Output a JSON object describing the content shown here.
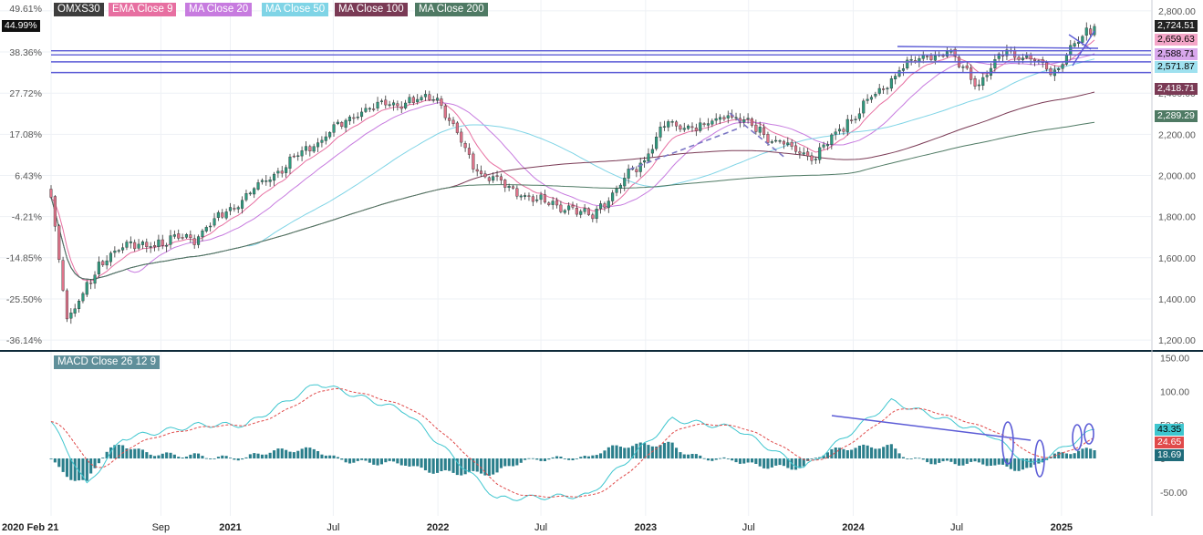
{
  "legend": [
    {
      "label": "OMXS30",
      "color": "#3d3d3d"
    },
    {
      "label": "EMA Close 9",
      "color": "#e76fa1"
    },
    {
      "label": "MA Close 20",
      "color": "#c77bdf"
    },
    {
      "label": "MA Close 50",
      "color": "#7fd4e6"
    },
    {
      "label": "MA Close 100",
      "color": "#7a3a55"
    },
    {
      "label": "MA Close 200",
      "color": "#4f7a64"
    }
  ],
  "macd_label": "MACD Close 26 12 9",
  "chart_data": [
    {
      "type": "candlestick",
      "instrument": "OMXS30",
      "interval": "weekly",
      "x_tick_labels": [
        "2020 Feb 21",
        "Sep",
        "2021",
        "Jul",
        "2022",
        "Jul",
        "2023",
        "Jul",
        "2024",
        "Jul",
        "2025"
      ],
      "left_axis_ticks": [
        "49.61%",
        "38.36%",
        "27.72%",
        "17.08%",
        "6.43%",
        "-4.21%",
        "-14.85%",
        "-25.50%",
        "-36.14%"
      ],
      "left_axis_highlight": "44.99%",
      "right_axis_ticks": [
        "2,800.00",
        "2,600.00",
        "2,400.00",
        "2,200.00",
        "2,000.00",
        "1,800.00",
        "1,600.00",
        "1,400.00",
        "1,200.00"
      ],
      "right_axis_ticks_values": [
        2800,
        2600,
        2400,
        2200,
        2000,
        1800,
        1600,
        1400,
        1200
      ],
      "ylim": [
        1165,
        2835
      ],
      "price_anchors": [
        {
          "date": "2020-02-21",
          "close": 1880
        },
        {
          "date": "2020-03-20",
          "close": 1300
        },
        {
          "date": "2020-06-05",
          "close": 1640
        },
        {
          "date": "2020-10-30",
          "close": 1700
        },
        {
          "date": "2021-04-30",
          "close": 2100
        },
        {
          "date": "2021-08-27",
          "close": 2330
        },
        {
          "date": "2021-12-31",
          "close": 2380
        },
        {
          "date": "2022-03-11",
          "close": 2020
        },
        {
          "date": "2022-06-17",
          "close": 1880
        },
        {
          "date": "2022-09-30",
          "close": 1810
        },
        {
          "date": "2022-12-30",
          "close": 2080
        },
        {
          "date": "2023-02-03",
          "close": 2250
        },
        {
          "date": "2023-04-07",
          "close": 2230
        },
        {
          "date": "2023-05-26",
          "close": 2300
        },
        {
          "date": "2023-09-29",
          "close": 2110
        },
        {
          "date": "2023-10-27",
          "close": 2100
        },
        {
          "date": "2024-01-26",
          "close": 2360
        },
        {
          "date": "2024-04-05",
          "close": 2550
        },
        {
          "date": "2024-06-14",
          "close": 2600
        },
        {
          "date": "2024-08-09",
          "close": 2450
        },
        {
          "date": "2024-09-27",
          "close": 2610
        },
        {
          "date": "2024-12-20",
          "close": 2500
        },
        {
          "date": "2025-02-14",
          "close": 2700
        },
        {
          "date": "2025-02-28",
          "close": 2724.51
        }
      ],
      "price_labels": [
        {
          "text": "2,724.51",
          "value": 2724.51,
          "bg": "#222222",
          "fg": "#ffffff"
        },
        {
          "text": "2,659.63",
          "value": 2659.63,
          "bg": "#f4a6c8",
          "fg": "#000000"
        },
        {
          "text": "2,588.71",
          "value": 2588.71,
          "bg": "#d8a7ec",
          "fg": "#000000"
        },
        {
          "text": "2,571.87",
          "value": 2571.87,
          "bg": "#9fe1ef",
          "fg": "#000000"
        },
        {
          "text": "2,418.71",
          "value": 2418.71,
          "bg": "#7a3a55",
          "fg": "#ffffff"
        },
        {
          "text": "2,289.29",
          "value": 2289.29,
          "bg": "#4f7a64",
          "fg": "#ffffff"
        }
      ],
      "horizontal_levels": [
        2606,
        2586,
        2552
      ],
      "up_color": "#2f9a7f",
      "down_color": "#e0738a"
    },
    {
      "type": "macd",
      "title": "MACD Close 26 12 9",
      "y_tick_labels": [
        "150.00",
        "100.00",
        "50.00",
        "0",
        "-50.00"
      ],
      "y_tick_values": [
        150,
        100,
        50,
        0,
        -50
      ],
      "ylim": [
        -80,
        152
      ],
      "macd_anchors": [
        {
          "date": "2020-02-21",
          "macd": 55
        },
        {
          "date": "2020-04-24",
          "macd": -40
        },
        {
          "date": "2020-06-26",
          "macd": 30
        },
        {
          "date": "2020-11-06",
          "macd": 50
        },
        {
          "date": "2021-01-29",
          "macd": 50
        },
        {
          "date": "2021-06-04",
          "macd": 112
        },
        {
          "date": "2021-11-05",
          "macd": 70
        },
        {
          "date": "2022-04-15",
          "macd": -60
        },
        {
          "date": "2022-09-23",
          "macd": -55
        },
        {
          "date": "2023-02-17",
          "macd": 58
        },
        {
          "date": "2023-06-09",
          "macd": 45
        },
        {
          "date": "2023-10-06",
          "macd": -15
        },
        {
          "date": "2024-03-08",
          "macd": 85
        },
        {
          "date": "2024-08-30",
          "macd": 35
        },
        {
          "date": "2024-11-08",
          "macd": -10
        },
        {
          "date": "2025-01-03",
          "macd": 15
        },
        {
          "date": "2025-02-28",
          "macd": 43.35
        }
      ],
      "value_labels": [
        {
          "text": "43.35",
          "value": 43.35,
          "bg": "#3fc6cf",
          "fg": "#000000"
        },
        {
          "text": "24.65",
          "value": 24.65,
          "bg": "#e04a4a",
          "fg": "#ffffff"
        },
        {
          "text": "18.69",
          "value": 18.69,
          "bg": "#1f6b7a",
          "fg": "#ffffff"
        }
      ],
      "macd_color": "#3fc6cf",
      "signal_color": "#e04a4a",
      "hist_color": "#2b7f8c"
    }
  ]
}
